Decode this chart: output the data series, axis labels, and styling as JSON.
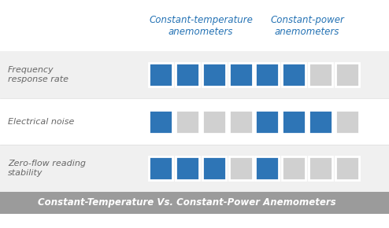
{
  "title": "Constant-Temperature Vs. Constant-Power Anemometers",
  "col_headers": [
    "Constant-temperature\nanemometers",
    "Constant-power\nanemometers"
  ],
  "row_labels": [
    "Frequency\nresponse rate",
    "Electrical noise",
    "Zero-flow reading\nstability"
  ],
  "ct_ratings": [
    4,
    1,
    3
  ],
  "cp_ratings": [
    2,
    3,
    1
  ],
  "max_squares": 4,
  "blue_color": "#2E75B6",
  "gray_color": "#D0D0D0",
  "header_color": "#2472B4",
  "title_bg_color": "#9B9B9B",
  "title_text_color": "#ffffff",
  "bg_color": "#ffffff",
  "row_bg_colors": [
    "#f0f0f0",
    "#ffffff",
    "#f0f0f0"
  ],
  "fig_width": 4.94,
  "fig_height": 2.9
}
